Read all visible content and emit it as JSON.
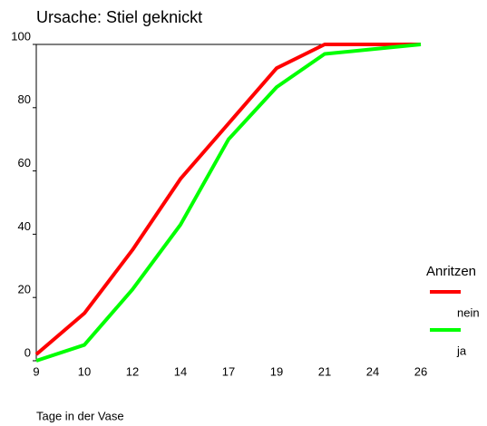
{
  "chart_data": {
    "type": "line",
    "title": "Ursache: Stiel geknickt",
    "x_label": "Tage in der Vase",
    "categories": [
      "9",
      "10",
      "12",
      "14",
      "17",
      "19",
      "21",
      "24",
      "26"
    ],
    "series": [
      {
        "name": "nein",
        "color": "#ff0000",
        "values": [
          2,
          15,
          35,
          57.5,
          75,
          92.5,
          100,
          100,
          100
        ]
      },
      {
        "name": "ja",
        "color": "#00ff00",
        "values": [
          0,
          5,
          22.5,
          43,
          70,
          86.5,
          97,
          98.5,
          100
        ]
      }
    ],
    "ylim": [
      0,
      100
    ],
    "yticks": [
      0,
      20,
      40,
      60,
      80,
      100
    ],
    "legend_title": "Anritzen",
    "legend": "right",
    "grid": false
  }
}
